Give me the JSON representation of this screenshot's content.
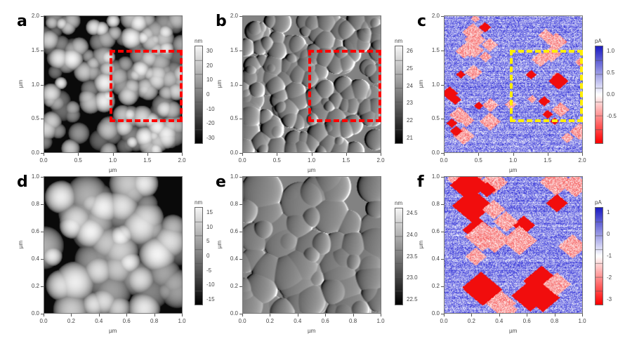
{
  "figure": {
    "panels": [
      {
        "label": "a",
        "kind": "topography",
        "x_label": "µm",
        "y_label": "µm",
        "x_ticks": [
          "0.0",
          "0.5",
          "1.0",
          "1.5",
          "2.0"
        ],
        "y_ticks": [
          "0.0",
          "0.5",
          "1.0",
          "1.5",
          "2.0"
        ],
        "x_range": [
          0,
          2
        ],
        "y_range": [
          0,
          2
        ],
        "colorbar": {
          "unit": "nm",
          "ticks": [
            "30",
            "20",
            "10",
            "0",
            "-10",
            "-20",
            "-30"
          ],
          "colormap": "grayscale"
        },
        "highlight": {
          "x": [
            0.95,
            2.0
          ],
          "y": [
            0.45,
            1.5
          ],
          "color": "#ff0000"
        }
      },
      {
        "label": "b",
        "kind": "amplitude",
        "x_label": "µm",
        "y_label": "µm",
        "x_ticks": [
          "0.0",
          "0.5",
          "1.0",
          "1.5",
          "2.0"
        ],
        "y_ticks": [
          "0.0",
          "0.5",
          "1.0",
          "1.5",
          "2.0"
        ],
        "x_range": [
          0,
          2
        ],
        "y_range": [
          0,
          2
        ],
        "colorbar": {
          "unit": "nm",
          "ticks": [
            "26",
            "25",
            "24",
            "23",
            "22",
            "21"
          ],
          "colormap": "grayscale"
        },
        "highlight": {
          "x": [
            0.95,
            2.0
          ],
          "y": [
            0.45,
            1.5
          ],
          "color": "#ff0000"
        }
      },
      {
        "label": "c",
        "kind": "current",
        "x_label": "µm",
        "y_label": "µm",
        "x_ticks": [
          "0.0",
          "0.5",
          "1.0",
          "1.5",
          "2.0"
        ],
        "y_ticks": [
          "0.0",
          "0.5",
          "1.0",
          "1.5",
          "2.0"
        ],
        "x_range": [
          0,
          2
        ],
        "y_range": [
          0,
          2
        ],
        "colorbar": {
          "unit": "pA",
          "ticks": [
            "1.0",
            "0.5",
            "0.0",
            "-0.5"
          ],
          "colormap": "blue-white-red"
        },
        "highlight": {
          "x": [
            0.95,
            2.0
          ],
          "y": [
            0.45,
            1.5
          ],
          "color": "#ffee00"
        }
      },
      {
        "label": "d",
        "kind": "topography",
        "x_label": "µm",
        "y_label": "µm",
        "x_ticks": [
          "0.0",
          "0.2",
          "0.4",
          "0.6",
          "0.8",
          "1.0"
        ],
        "y_ticks": [
          "0.0",
          "0.2",
          "0.4",
          "0.6",
          "0.8",
          "1.0"
        ],
        "x_range": [
          0,
          1
        ],
        "y_range": [
          0,
          1
        ],
        "colorbar": {
          "unit": "nm",
          "ticks": [
            "15",
            "10",
            "5",
            "0",
            "-5",
            "-10",
            "-15"
          ],
          "colormap": "grayscale"
        }
      },
      {
        "label": "e",
        "kind": "amplitude",
        "x_label": "µm",
        "y_label": "µm",
        "x_ticks": [
          "0.0",
          "0.2",
          "0.4",
          "0.6",
          "0.8",
          "1.0"
        ],
        "y_ticks": [
          "0.0",
          "0.2",
          "0.4",
          "0.6",
          "0.8",
          "1.0"
        ],
        "x_range": [
          0,
          1
        ],
        "y_range": [
          0,
          1
        ],
        "colorbar": {
          "unit": "nm",
          "ticks": [
            "24.5",
            "24.0",
            "23.5",
            "23.0",
            "22.5"
          ],
          "colormap": "grayscale"
        }
      },
      {
        "label": "f",
        "kind": "current",
        "x_label": "µm",
        "y_label": "µm",
        "x_ticks": [
          "0.0",
          "0.2",
          "0.4",
          "0.6",
          "0.8",
          "1.0"
        ],
        "y_ticks": [
          "0.0",
          "0.2",
          "0.4",
          "0.6",
          "0.8",
          "1.0"
        ],
        "x_range": [
          0,
          1
        ],
        "y_range": [
          0,
          1
        ],
        "colorbar": {
          "unit": "pA",
          "ticks": [
            "1",
            "0",
            "-1",
            "-2",
            "-3"
          ],
          "colormap": "blue-white-red"
        }
      }
    ]
  }
}
